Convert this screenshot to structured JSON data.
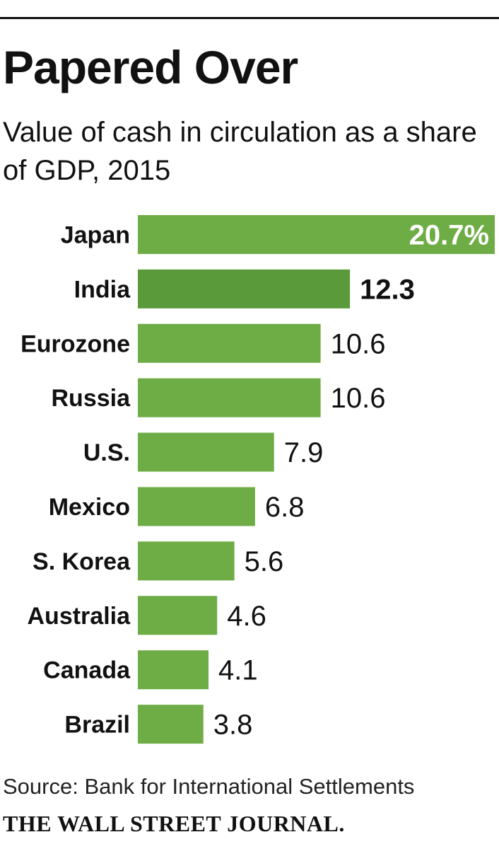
{
  "title": "Papered Over",
  "subtitle": "Value of cash in circulation as a share of GDP, 2015",
  "source": "Source: Bank for International Settlements",
  "publisher": "THE WALL STREET JOURNAL.",
  "colors": {
    "bar": "#6ead46",
    "highlight_bar": "#5a9a3b",
    "text": "#111111",
    "label_on_bar": "#ffffff"
  },
  "chart_data": {
    "type": "bar",
    "orientation": "horizontal",
    "title": "Papered Over",
    "subtitle": "Value of cash in circulation as a share of GDP, 2015",
    "unit": "%",
    "categories": [
      "Japan",
      "India",
      "Eurozone",
      "Russia",
      "U.S.",
      "Mexico",
      "S. Korea",
      "Australia",
      "Canada",
      "Brazil"
    ],
    "values": [
      20.7,
      12.3,
      10.6,
      10.6,
      7.9,
      6.8,
      5.6,
      4.6,
      4.1,
      3.8
    ],
    "value_labels": [
      "20.7%",
      "12.3",
      "10.6",
      "10.6",
      "7.9",
      "6.8",
      "5.6",
      "4.6",
      "4.1",
      "3.8"
    ],
    "highlighted": [
      "India"
    ],
    "xlim": [
      0,
      20.7
    ],
    "grid": false,
    "legend": "none"
  }
}
